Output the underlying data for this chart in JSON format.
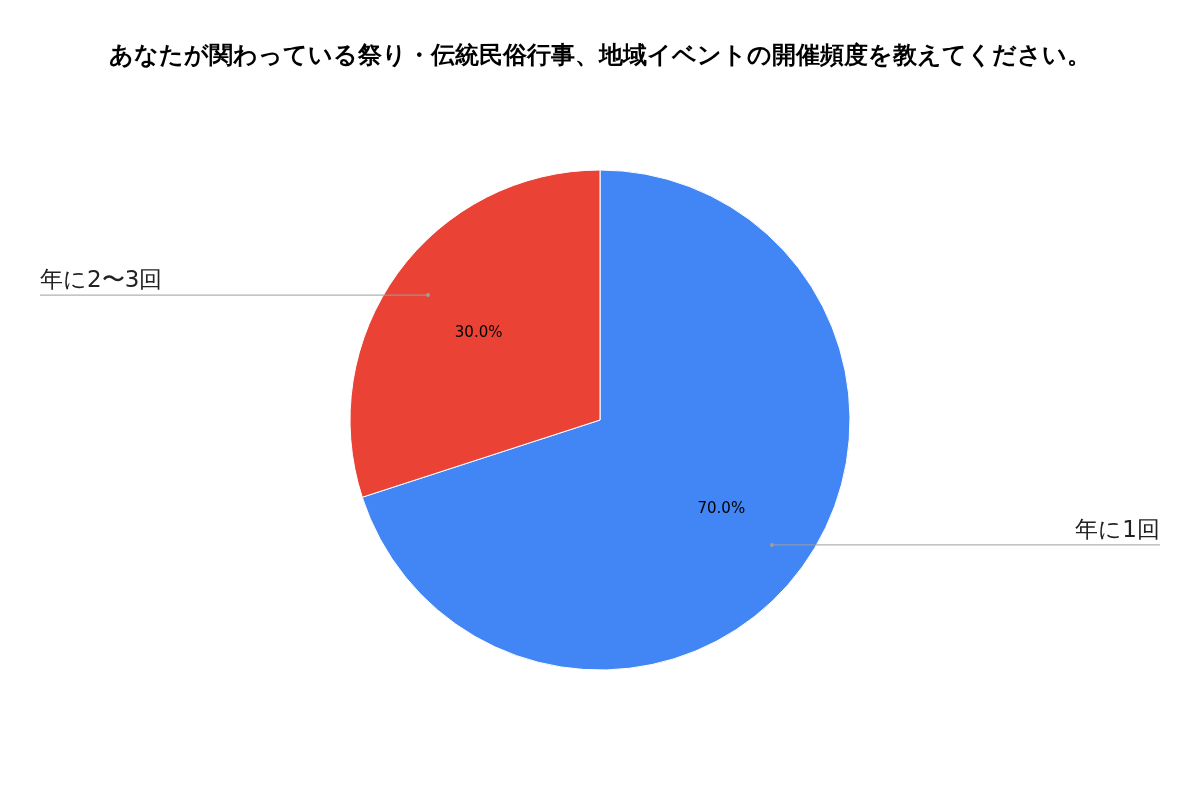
{
  "chart_data": {
    "type": "pie",
    "title": "あなたが関わっている祭り・伝統民俗行事、地域イベントの開催頻度を教えてください。",
    "categories": [
      "年に1回",
      "年に2〜3回"
    ],
    "values": [
      70,
      30
    ],
    "colors": [
      "#4285f4",
      "#ea4335"
    ],
    "value_labels": [
      "70.0%",
      "30.0%"
    ]
  }
}
